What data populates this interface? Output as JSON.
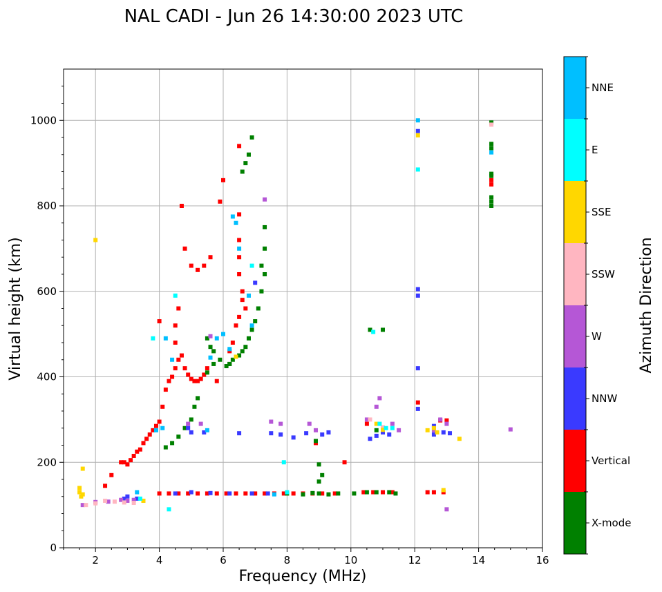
{
  "chart_data": {
    "type": "scatter",
    "title": "NAL CADI - Jun 26 14:30:00 2023 UTC",
    "xlabel": "Frequency (MHz)",
    "ylabel": "Virtual height (km)",
    "xlim": [
      1,
      16
    ],
    "ylim": [
      0,
      1120
    ],
    "xticks": [
      2,
      4,
      6,
      8,
      10,
      12,
      14,
      16
    ],
    "yticks": [
      0,
      200,
      400,
      600,
      800,
      1000
    ],
    "grid": true,
    "colorbar": {
      "label": "Azimuth Direction",
      "categories": [
        {
          "name": "X-mode",
          "color": "#008000"
        },
        {
          "name": "Vertical",
          "color": "#ff0000"
        },
        {
          "name": "NNW",
          "color": "#3a3aff"
        },
        {
          "name": "W",
          "color": "#b557d6"
        },
        {
          "name": "SSW",
          "color": "#ffb6c1"
        },
        {
          "name": "SSE",
          "color": "#ffd700"
        },
        {
          "name": "E",
          "color": "#00ffff"
        },
        {
          "name": "NNE",
          "color": "#00bfff"
        }
      ]
    },
    "series": [
      {
        "name": "Vertical",
        "points": [
          [
            2.8,
            200
          ],
          [
            2.9,
            200
          ],
          [
            3.0,
            195
          ],
          [
            3.1,
            205
          ],
          [
            3.2,
            215
          ],
          [
            3.3,
            225
          ],
          [
            3.4,
            230
          ],
          [
            3.5,
            245
          ],
          [
            3.6,
            255
          ],
          [
            3.7,
            265
          ],
          [
            3.8,
            275
          ],
          [
            3.9,
            285
          ],
          [
            4.0,
            295
          ],
          [
            4.1,
            330
          ],
          [
            4.2,
            370
          ],
          [
            4.3,
            390
          ],
          [
            4.4,
            400
          ],
          [
            4.5,
            420
          ],
          [
            4.6,
            440
          ],
          [
            4.7,
            450
          ],
          [
            4.8,
            420
          ],
          [
            4.9,
            405
          ],
          [
            5.0,
            395
          ],
          [
            5.1,
            390
          ],
          [
            5.2,
            390
          ],
          [
            5.3,
            395
          ],
          [
            5.4,
            405
          ],
          [
            5.5,
            420
          ],
          [
            4.5,
            480
          ],
          [
            4.5,
            520
          ],
          [
            4.6,
            560
          ],
          [
            4.0,
            530
          ],
          [
            4.7,
            800
          ],
          [
            4.8,
            700
          ],
          [
            5.0,
            660
          ],
          [
            5.2,
            650
          ],
          [
            5.4,
            660
          ],
          [
            5.6,
            680
          ],
          [
            5.9,
            810
          ],
          [
            6.0,
            860
          ],
          [
            6.5,
            640
          ],
          [
            6.5,
            680
          ],
          [
            6.5,
            720
          ],
          [
            6.5,
            780
          ],
          [
            6.6,
            580
          ],
          [
            6.6,
            600
          ],
          [
            6.7,
            560
          ],
          [
            6.5,
            940
          ],
          [
            5.8,
            390
          ],
          [
            6.2,
            460
          ],
          [
            6.3,
            480
          ],
          [
            6.4,
            520
          ],
          [
            6.5,
            540
          ],
          [
            4.0,
            127
          ],
          [
            4.3,
            127
          ],
          [
            4.6,
            127
          ],
          [
            4.9,
            127
          ],
          [
            5.2,
            127
          ],
          [
            5.5,
            127
          ],
          [
            5.8,
            127
          ],
          [
            6.1,
            127
          ],
          [
            6.4,
            127
          ],
          [
            6.7,
            127
          ],
          [
            7.0,
            127
          ],
          [
            7.3,
            127
          ],
          [
            7.6,
            127
          ],
          [
            7.9,
            127
          ],
          [
            8.2,
            127
          ],
          [
            8.5,
            127
          ],
          [
            8.8,
            127
          ],
          [
            9.1,
            127
          ],
          [
            9.5,
            127
          ],
          [
            10.4,
            130
          ],
          [
            10.7,
            130
          ],
          [
            11.0,
            130
          ],
          [
            11.3,
            130
          ],
          [
            12.4,
            130
          ],
          [
            12.6,
            130
          ],
          [
            12.9,
            130
          ],
          [
            12.1,
            340
          ],
          [
            12.8,
            298
          ],
          [
            13.0,
            298
          ],
          [
            14.4,
            850
          ],
          [
            14.4,
            860
          ],
          [
            2.5,
            170
          ],
          [
            2.3,
            145
          ],
          [
            9.8,
            200
          ],
          [
            8.9,
            245
          ],
          [
            10.5,
            290
          ]
        ]
      },
      {
        "name": "X-mode",
        "points": [
          [
            4.2,
            235
          ],
          [
            4.4,
            245
          ],
          [
            4.6,
            260
          ],
          [
            4.8,
            280
          ],
          [
            5.0,
            300
          ],
          [
            5.1,
            330
          ],
          [
            5.2,
            350
          ],
          [
            5.5,
            410
          ],
          [
            5.7,
            430
          ],
          [
            5.9,
            440
          ],
          [
            6.1,
            425
          ],
          [
            6.2,
            430
          ],
          [
            6.3,
            440
          ],
          [
            6.5,
            450
          ],
          [
            6.6,
            460
          ],
          [
            6.7,
            470
          ],
          [
            6.8,
            490
          ],
          [
            6.9,
            510
          ],
          [
            7.0,
            530
          ],
          [
            7.1,
            560
          ],
          [
            7.2,
            600
          ],
          [
            7.3,
            640
          ],
          [
            7.2,
            660
          ],
          [
            7.3,
            700
          ],
          [
            7.3,
            750
          ],
          [
            6.8,
            920
          ],
          [
            6.9,
            960
          ],
          [
            6.6,
            880
          ],
          [
            6.7,
            900
          ],
          [
            5.5,
            490
          ],
          [
            5.6,
            470
          ],
          [
            5.7,
            460
          ],
          [
            6.2,
            430
          ],
          [
            8.0,
            127
          ],
          [
            8.5,
            125
          ],
          [
            9.0,
            127
          ],
          [
            9.3,
            125
          ],
          [
            9.6,
            127
          ],
          [
            10.1,
            127
          ],
          [
            10.5,
            130
          ],
          [
            10.8,
            130
          ],
          [
            11.2,
            130
          ],
          [
            9.1,
            170
          ],
          [
            9.0,
            195
          ],
          [
            9.0,
            155
          ],
          [
            8.9,
            250
          ],
          [
            10.6,
            510
          ],
          [
            11.0,
            510
          ],
          [
            10.8,
            275
          ],
          [
            14.4,
            800
          ],
          [
            14.4,
            810
          ],
          [
            14.4,
            820
          ],
          [
            14.4,
            870
          ],
          [
            14.4,
            875
          ],
          [
            14.4,
            935
          ],
          [
            14.4,
            945
          ],
          [
            14.4,
            995
          ],
          [
            11.4,
            127
          ],
          [
            8.8,
            128
          ]
        ]
      },
      {
        "name": "NNW",
        "points": [
          [
            4.5,
            127
          ],
          [
            5.0,
            130
          ],
          [
            5.6,
            128
          ],
          [
            6.2,
            127
          ],
          [
            6.9,
            127
          ],
          [
            7.4,
            127
          ],
          [
            4.9,
            280
          ],
          [
            5.0,
            270
          ],
          [
            5.4,
            270
          ],
          [
            6.5,
            268
          ],
          [
            7.5,
            268
          ],
          [
            7.8,
            265
          ],
          [
            8.2,
            258
          ],
          [
            8.6,
            268
          ],
          [
            9.1,
            265
          ],
          [
            9.3,
            270
          ],
          [
            10.6,
            255
          ],
          [
            10.8,
            262
          ],
          [
            11.0,
            270
          ],
          [
            11.2,
            265
          ],
          [
            12.1,
            590
          ],
          [
            12.1,
            605
          ],
          [
            12.1,
            420
          ],
          [
            12.1,
            325
          ],
          [
            12.6,
            265
          ],
          [
            12.9,
            270
          ],
          [
            13.1,
            268
          ],
          [
            2.9,
            115
          ],
          [
            3.0,
            120
          ],
          [
            3.3,
            115
          ],
          [
            12.1,
            975
          ],
          [
            12.6,
            285
          ],
          [
            7.0,
            620
          ]
        ]
      },
      {
        "name": "W",
        "points": [
          [
            1.6,
            100
          ],
          [
            2.0,
            107
          ],
          [
            2.4,
            108
          ],
          [
            2.8,
            112
          ],
          [
            3.0,
            110
          ],
          [
            3.2,
            112
          ],
          [
            4.9,
            290
          ],
          [
            5.3,
            290
          ],
          [
            7.5,
            295
          ],
          [
            7.8,
            290
          ],
          [
            8.7,
            290
          ],
          [
            8.9,
            275
          ],
          [
            10.5,
            300
          ],
          [
            10.8,
            330
          ],
          [
            10.9,
            350
          ],
          [
            11.3,
            290
          ],
          [
            11.5,
            275
          ],
          [
            12.6,
            275
          ],
          [
            12.8,
            300
          ],
          [
            13.0,
            290
          ],
          [
            13.0,
            90
          ],
          [
            15.0,
            277
          ],
          [
            7.3,
            815
          ],
          [
            5.6,
            495
          ]
        ]
      },
      {
        "name": "SSW",
        "points": [
          [
            1.7,
            100
          ],
          [
            2.0,
            104
          ],
          [
            2.3,
            110
          ],
          [
            2.6,
            108
          ],
          [
            2.9,
            106
          ],
          [
            3.2,
            105
          ],
          [
            3.5,
            110
          ],
          [
            11.0,
            282
          ],
          [
            10.6,
            300
          ],
          [
            14.4,
            990
          ]
        ]
      },
      {
        "name": "SSE",
        "points": [
          [
            1.5,
            130
          ],
          [
            1.55,
            120
          ],
          [
            1.6,
            185
          ],
          [
            1.5,
            140
          ],
          [
            1.6,
            125
          ],
          [
            3.5,
            110
          ],
          [
            12.6,
            280
          ],
          [
            12.7,
            270
          ],
          [
            12.4,
            275
          ],
          [
            13.4,
            255
          ],
          [
            12.9,
            135
          ],
          [
            10.8,
            290
          ],
          [
            12.1,
            965
          ],
          [
            2.0,
            720
          ],
          [
            11.0,
            276
          ],
          [
            6.4,
            447
          ]
        ]
      },
      {
        "name": "E",
        "points": [
          [
            3.8,
            490
          ],
          [
            4.3,
            90
          ],
          [
            3.4,
            115
          ],
          [
            8.0,
            130
          ],
          [
            7.9,
            200
          ],
          [
            12.1,
            885
          ],
          [
            10.7,
            505
          ],
          [
            11.1,
            280
          ],
          [
            10.9,
            290
          ],
          [
            11.3,
            280
          ],
          [
            4.5,
            590
          ],
          [
            6.9,
            660
          ]
        ]
      },
      {
        "name": "NNE",
        "points": [
          [
            4.2,
            490
          ],
          [
            4.4,
            440
          ],
          [
            5.6,
            445
          ],
          [
            5.8,
            490
          ],
          [
            6.0,
            500
          ],
          [
            6.3,
            775
          ],
          [
            6.4,
            760
          ],
          [
            6.5,
            700
          ],
          [
            6.8,
            590
          ],
          [
            6.9,
            520
          ],
          [
            6.2,
            465
          ],
          [
            5.5,
            275
          ],
          [
            3.9,
            275
          ],
          [
            4.1,
            280
          ],
          [
            12.1,
            1000
          ],
          [
            14.4,
            925
          ],
          [
            3.3,
            130
          ],
          [
            7.6,
            125
          ]
        ]
      }
    ]
  }
}
